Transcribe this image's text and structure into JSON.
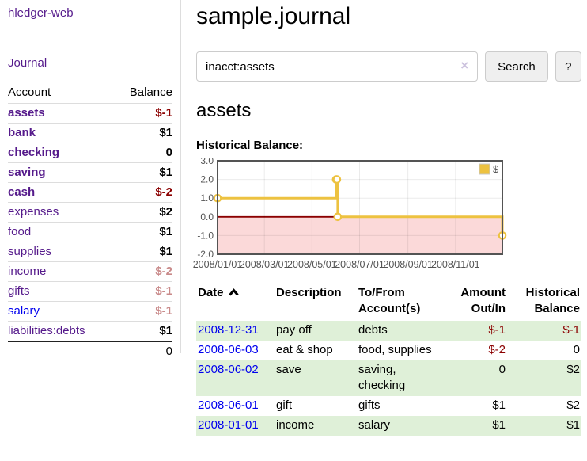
{
  "colors": {
    "link_purple": "#551A8B",
    "link_blue": "#0000EE",
    "negative_strong": "#8B0000",
    "negative_muted": "#C98A8A",
    "row_highlight_green": "#DFF0D8",
    "chart_line_gold": "#EDC240",
    "chart_negative_area_pink": "#FBD9D9",
    "chart_zero_line_red": "#8B0000"
  },
  "sidebar": {
    "brand": "hledger-web",
    "nav": {
      "journal": "Journal"
    },
    "headers": {
      "account": "Account",
      "balance": "Balance"
    },
    "accounts": [
      {
        "name": "assets",
        "balance": "$-1",
        "indent": 1,
        "bold": true
      },
      {
        "name": "bank",
        "balance": "$1",
        "indent": 2,
        "bold": true
      },
      {
        "name": "checking",
        "balance": "0",
        "indent": 3,
        "bold": true
      },
      {
        "name": "saving",
        "balance": "$1",
        "indent": 3,
        "bold": true
      },
      {
        "name": "cash",
        "balance": "$-2",
        "indent": 2,
        "bold": true
      },
      {
        "name": "expenses",
        "balance": "$2",
        "indent": 1,
        "bold": false
      },
      {
        "name": "food",
        "balance": "$1",
        "indent": 2,
        "bold": false
      },
      {
        "name": "supplies",
        "balance": "$1",
        "indent": 2,
        "bold": false
      },
      {
        "name": "income",
        "balance": "$-2",
        "indent": 1,
        "bold": false
      },
      {
        "name": "gifts",
        "balance": "$-1",
        "indent": 2,
        "bold": false
      },
      {
        "name": "salary",
        "balance": "$-1",
        "indent": 2,
        "bold": false
      },
      {
        "name": "liabilities:debts",
        "balance": "$1",
        "indent": 1,
        "bold": false
      }
    ],
    "total": "0"
  },
  "main": {
    "title": "sample.journal",
    "search": {
      "value": "inacct:assets",
      "clear_icon": "×",
      "search_button": "Search",
      "help_button": "?"
    },
    "account_heading": "assets",
    "chart_heading": "Historical Balance:"
  },
  "chart_data": {
    "type": "line",
    "step": true,
    "title": "Historical Balance of assets",
    "legend": [
      {
        "name": "$",
        "color": "#EDC240"
      }
    ],
    "legend_position": "top-right",
    "grid": true,
    "x": [
      "2008-01-01",
      "2008-06-01",
      "2008-06-02",
      "2008-06-03",
      "2008-12-31"
    ],
    "y": [
      1,
      2,
      2,
      0,
      -1
    ],
    "xlim": [
      "2008-01-01",
      "2008-12-31"
    ],
    "ylim": [
      -2,
      3
    ],
    "yticks": [
      {
        "value": 3,
        "label": "3.0"
      },
      {
        "value": 2,
        "label": "2.0"
      },
      {
        "value": 1,
        "label": "1.0"
      },
      {
        "value": 0,
        "label": "0.0"
      },
      {
        "value": -1,
        "label": "-1.0"
      },
      {
        "value": -2,
        "label": "-2.0"
      }
    ],
    "xticks": [
      {
        "date": "2008-01-01",
        "label": "2008/01/01"
      },
      {
        "date": "2008-03-01",
        "label": "2008/03/01"
      },
      {
        "date": "2008-05-01",
        "label": "2008/05/01"
      },
      {
        "date": "2008-07-01",
        "label": "2008/07/01"
      },
      {
        "date": "2008-09-01",
        "label": "2008/09/01"
      },
      {
        "date": "2008-11-01",
        "label": "2008/11/01"
      }
    ]
  },
  "register": {
    "headers": {
      "date": "Date",
      "description": "Description",
      "accounts": "To/From Account(s)",
      "amount": "Amount Out/In",
      "historical": "Historical Balance"
    },
    "rows": [
      {
        "date": "2008-12-31",
        "description": "pay off",
        "accounts": "debts",
        "amount": "$-1",
        "historical": "$-1"
      },
      {
        "date": "2008-06-03",
        "description": "eat & shop",
        "accounts": "food, supplies",
        "amount": "$-2",
        "historical": "0"
      },
      {
        "date": "2008-06-02",
        "description": "save",
        "accounts": "saving,\nchecking",
        "amount": "0",
        "historical": "$2"
      },
      {
        "date": "2008-06-01",
        "description": "gift",
        "accounts": "gifts",
        "amount": "$1",
        "historical": "$2"
      },
      {
        "date": "2008-01-01",
        "description": "income",
        "accounts": "salary",
        "amount": "$1",
        "historical": "$1"
      }
    ]
  }
}
